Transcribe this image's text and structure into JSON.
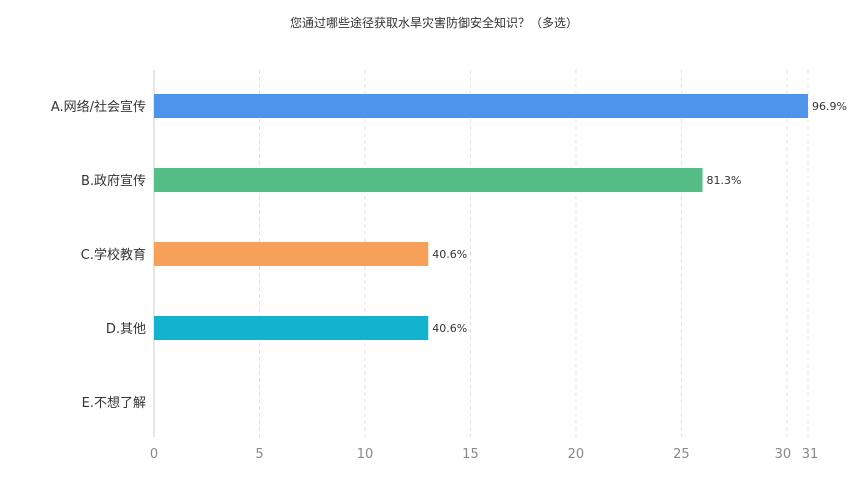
{
  "chart_data": {
    "type": "bar",
    "orientation": "horizontal",
    "title": "您通过哪些途径获取水旱灾害防御安全知识？（多选）",
    "categories": [
      "A.网络/社会宣传",
      "B.政府宣传",
      "C.学校教育",
      "D.其他",
      "E.不想了解"
    ],
    "values": [
      31,
      26,
      13,
      13,
      0
    ],
    "data_labels": [
      "96.9%",
      "81.3%",
      "40.6%",
      "40.6%",
      ""
    ],
    "colors": [
      "#4f94ec",
      "#55be86",
      "#f6a05a",
      "#12b3cf",
      "#999999"
    ],
    "xlim": [
      0,
      31
    ],
    "xticks": [
      "0",
      "5",
      "10",
      "15",
      "20",
      "25",
      "30",
      "31"
    ],
    "xtick_values": [
      0,
      5,
      10,
      15,
      20,
      25,
      30,
      31
    ],
    "grid": true,
    "xlabel": "",
    "ylabel": ""
  }
}
